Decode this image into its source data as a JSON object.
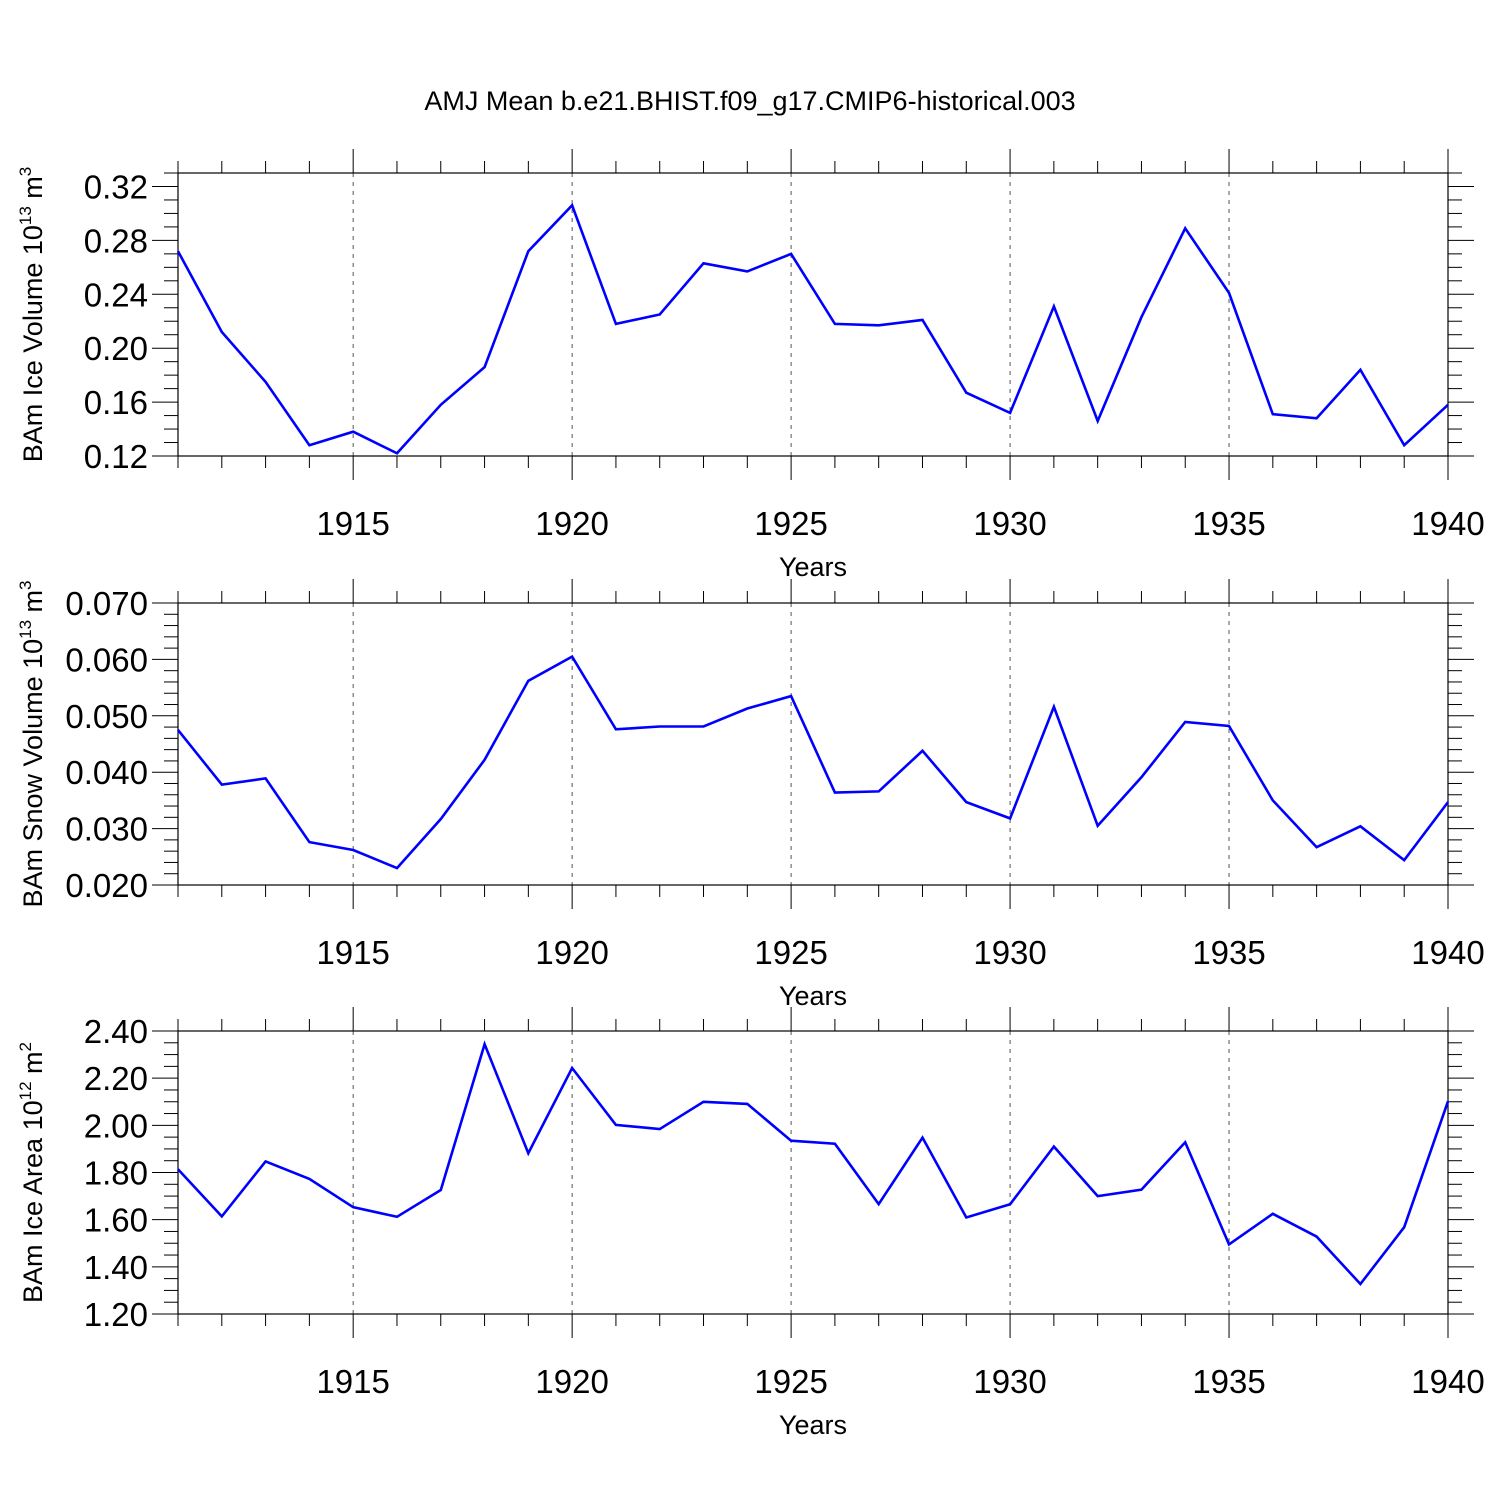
{
  "title": "AMJ Mean b.e21.BHIST.f09_g17.CMIP6-historical.003",
  "style": {
    "line_color": "#0000ff",
    "axis_color": "#000000",
    "grid_color": "#555555"
  },
  "chart_data": [
    {
      "type": "line",
      "ylabel": {
        "main": "BAm Ice Volume 10",
        "exp": "13",
        "unit": " m",
        "unit_exp": "3"
      },
      "xlabel": "Years",
      "xlim": [
        1911,
        1940
      ],
      "ylim": [
        0.12,
        0.33
      ],
      "yticks": [
        0.12,
        0.16,
        0.2,
        0.24,
        0.28,
        0.32
      ],
      "ytick_labels": [
        "0.12",
        "0.16",
        "0.20",
        "0.24",
        "0.28",
        "0.32"
      ],
      "ytick_minor": 0.01,
      "xticks": [
        1915,
        1920,
        1925,
        1930,
        1935,
        1940
      ],
      "xtick_labels": [
        "1915",
        "1920",
        "1925",
        "1930",
        "1935",
        "1940"
      ],
      "grid": "x-dashed",
      "x": [
        1911,
        1912,
        1913,
        1914,
        1915,
        1916,
        1917,
        1918,
        1919,
        1920,
        1921,
        1922,
        1923,
        1924,
        1925,
        1926,
        1927,
        1928,
        1929,
        1930,
        1931,
        1932,
        1933,
        1934,
        1935,
        1936,
        1937,
        1938,
        1939,
        1940
      ],
      "y": [
        0.272,
        0.212,
        0.175,
        0.128,
        0.138,
        0.122,
        0.158,
        0.186,
        0.272,
        0.306,
        0.218,
        0.225,
        0.263,
        0.257,
        0.27,
        0.218,
        0.217,
        0.221,
        0.167,
        0.152,
        0.231,
        0.146,
        0.223,
        0.289,
        0.241,
        0.151,
        0.148,
        0.184,
        0.128,
        0.158
      ]
    },
    {
      "type": "line",
      "ylabel": {
        "main": "BAm Snow Volume 10",
        "exp": "13",
        "unit": " m",
        "unit_exp": "3"
      },
      "xlabel": "Years",
      "xlim": [
        1911,
        1940
      ],
      "ylim": [
        0.02,
        0.07
      ],
      "yticks": [
        0.02,
        0.03,
        0.04,
        0.05,
        0.06,
        0.07
      ],
      "ytick_labels": [
        "0.020",
        "0.030",
        "0.040",
        "0.050",
        "0.060",
        "0.070"
      ],
      "ytick_minor": 0.002,
      "xticks": [
        1915,
        1920,
        1925,
        1930,
        1935,
        1940
      ],
      "xtick_labels": [
        "1915",
        "1920",
        "1925",
        "1930",
        "1935",
        "1940"
      ],
      "grid": "x-dashed",
      "x": [
        1911,
        1912,
        1913,
        1914,
        1915,
        1916,
        1917,
        1918,
        1919,
        1920,
        1921,
        1922,
        1923,
        1924,
        1925,
        1926,
        1927,
        1928,
        1929,
        1930,
        1931,
        1932,
        1933,
        1934,
        1935,
        1936,
        1937,
        1938,
        1939,
        1940
      ],
      "y": [
        0.0475,
        0.0378,
        0.0389,
        0.0276,
        0.0262,
        0.023,
        0.0317,
        0.0422,
        0.0562,
        0.0605,
        0.0476,
        0.0481,
        0.0481,
        0.0513,
        0.0535,
        0.0364,
        0.0366,
        0.0438,
        0.0347,
        0.0318,
        0.0516,
        0.0305,
        0.0391,
        0.0489,
        0.0482,
        0.035,
        0.0267,
        0.0304,
        0.0244,
        0.0347
      ]
    },
    {
      "type": "line",
      "ylabel": {
        "main": "BAm Ice Area 10",
        "exp": "12",
        "unit": " m",
        "unit_exp": "2"
      },
      "xlabel": "Years",
      "xlim": [
        1911,
        1940
      ],
      "ylim": [
        1.2,
        2.4
      ],
      "yticks": [
        1.2,
        1.4,
        1.6,
        1.8,
        2.0,
        2.2,
        2.4
      ],
      "ytick_labels": [
        "1.20",
        "1.40",
        "1.60",
        "1.80",
        "2.00",
        "2.20",
        "2.40"
      ],
      "ytick_minor": 0.05,
      "xticks": [
        1915,
        1920,
        1925,
        1930,
        1935,
        1940
      ],
      "xtick_labels": [
        "1915",
        "1920",
        "1925",
        "1930",
        "1935",
        "1940"
      ],
      "grid": "x-dashed",
      "x": [
        1911,
        1912,
        1913,
        1914,
        1915,
        1916,
        1917,
        1918,
        1919,
        1920,
        1921,
        1922,
        1923,
        1924,
        1925,
        1926,
        1927,
        1928,
        1929,
        1930,
        1931,
        1932,
        1933,
        1934,
        1935,
        1936,
        1937,
        1938,
        1939,
        1940
      ],
      "y": [
        1.814,
        1.614,
        1.847,
        1.773,
        1.653,
        1.612,
        1.726,
        2.344,
        1.882,
        2.243,
        2.002,
        1.984,
        2.1,
        2.091,
        1.935,
        1.922,
        1.666,
        1.948,
        1.609,
        1.665,
        1.91,
        1.7,
        1.727,
        1.928,
        1.495,
        1.625,
        1.528,
        1.327,
        1.568,
        2.102
      ]
    }
  ]
}
